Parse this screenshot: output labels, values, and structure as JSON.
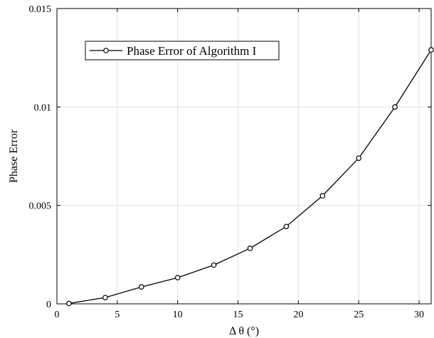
{
  "chart_data": {
    "type": "line",
    "title": "",
    "xlabel": "Δ θ (°)",
    "ylabel": "Phase Error",
    "xlim": [
      0,
      31
    ],
    "ylim": [
      0,
      0.015
    ],
    "xticks": [
      0,
      5,
      10,
      15,
      20,
      25,
      30
    ],
    "yticks": [
      0,
      0.005,
      0.01,
      0.015
    ],
    "xtick_labels": [
      "0",
      "5",
      "10",
      "15",
      "20",
      "25",
      "30"
    ],
    "ytick_labels": [
      "0",
      "0.005",
      "0.01",
      "0.015"
    ],
    "grid": true,
    "legend_position": "top-left",
    "series": [
      {
        "name": "Phase Error of Algorithm I",
        "color": "#000000",
        "marker": "circle",
        "x": [
          1,
          4,
          7,
          10,
          13,
          16,
          19,
          22,
          25,
          28,
          31
        ],
        "y": [
          2e-05,
          0.00032,
          0.00086,
          0.00133,
          0.00197,
          0.00282,
          0.00393,
          0.00549,
          0.0074,
          0.01,
          0.0129
        ]
      }
    ]
  }
}
